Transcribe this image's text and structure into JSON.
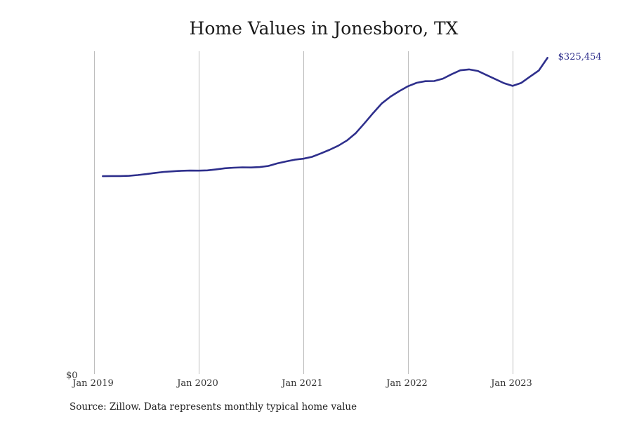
{
  "chart_data": {
    "type": "line",
    "title": "Home Values in Jonesboro, TX",
    "xlabel": "",
    "ylabel": "",
    "y_zero_label": "$0",
    "x_tick_labels": [
      "Jan 2019",
      "Jan 2020",
      "Jan 2021",
      "Jan 2022",
      "Jan 2023"
    ],
    "x_ticks": [
      "2019-01",
      "2020-01",
      "2021-01",
      "2022-01",
      "2023-01"
    ],
    "x_range": [
      "2019-01",
      "2023-12"
    ],
    "ylim": [
      0,
      333000
    ],
    "grid": "vertical lines at January ticks",
    "line_color": "#2e2f8c",
    "end_label": "$325,454",
    "series": [
      {
        "x": [
          "2019-02",
          "2019-03",
          "2019-04",
          "2019-05",
          "2019-06",
          "2019-07",
          "2019-08",
          "2019-09",
          "2019-10",
          "2019-11",
          "2019-12",
          "2020-01",
          "2020-02",
          "2020-03",
          "2020-04",
          "2020-05",
          "2020-06",
          "2020-07",
          "2020-08",
          "2020-09",
          "2020-10",
          "2020-11",
          "2020-12",
          "2021-01",
          "2021-02",
          "2021-03",
          "2021-04",
          "2021-05",
          "2021-06",
          "2021-07",
          "2021-08",
          "2021-09",
          "2021-10",
          "2021-11",
          "2021-12",
          "2022-01",
          "2022-02",
          "2022-03",
          "2022-04",
          "2022-05",
          "2022-06",
          "2022-07",
          "2022-08",
          "2022-09",
          "2022-10",
          "2022-11",
          "2022-12",
          "2023-01",
          "2023-02",
          "2023-03",
          "2023-04",
          "2023-05"
        ],
        "values": [
          203600,
          203800,
          203800,
          204000,
          204800,
          205800,
          207000,
          208000,
          208600,
          209200,
          209400,
          209300,
          209600,
          210600,
          211800,
          212400,
          212700,
          212600,
          213000,
          214200,
          216800,
          218800,
          220600,
          221600,
          223600,
          227000,
          230800,
          235000,
          240400,
          247800,
          258000,
          268600,
          278600,
          285600,
          291200,
          296200,
          299800,
          301400,
          301600,
          304000,
          308600,
          312600,
          313600,
          312000,
          307800,
          303600,
          299400,
          296600,
          299700,
          306100,
          312400,
          325454
        ]
      }
    ]
  },
  "footer": {
    "source": "Source: Zillow. Data represents monthly typical home value"
  }
}
